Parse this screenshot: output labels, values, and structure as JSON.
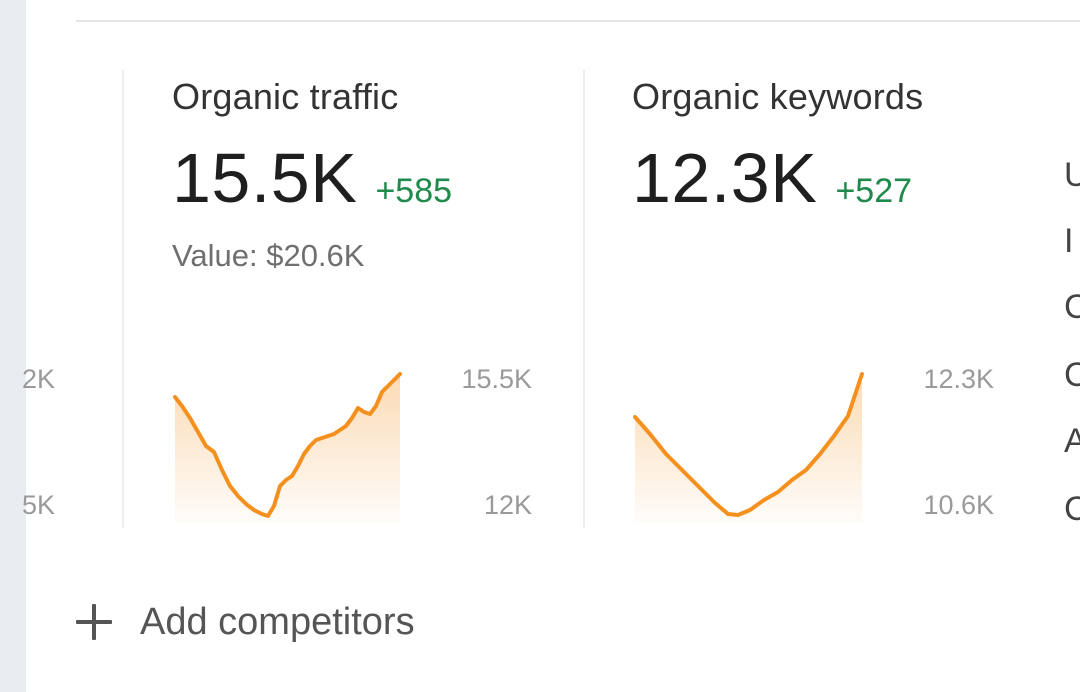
{
  "left_axis": {
    "top_label": "2K",
    "bottom_label": "5K"
  },
  "metrics": [
    {
      "title": "Organic traffic",
      "value": "15.5K",
      "change": "+585",
      "subtext": "Value: $20.6K",
      "axis": {
        "top": "15.5K",
        "bottom": "12K"
      }
    },
    {
      "title": "Organic keywords",
      "value": "12.3K",
      "change": "+527",
      "axis": {
        "top": "12.3K",
        "bottom": "10.6K"
      }
    }
  ],
  "right_edge_letters": [
    "U",
    "I",
    "C",
    "C",
    "A",
    "C"
  ],
  "colors": {
    "accent": "#f5901e",
    "positive": "#1f8a4c",
    "area_top": "#fbd9b0"
  },
  "add_competitors": {
    "icon": "plus-icon",
    "label": "Add competitors"
  }
}
